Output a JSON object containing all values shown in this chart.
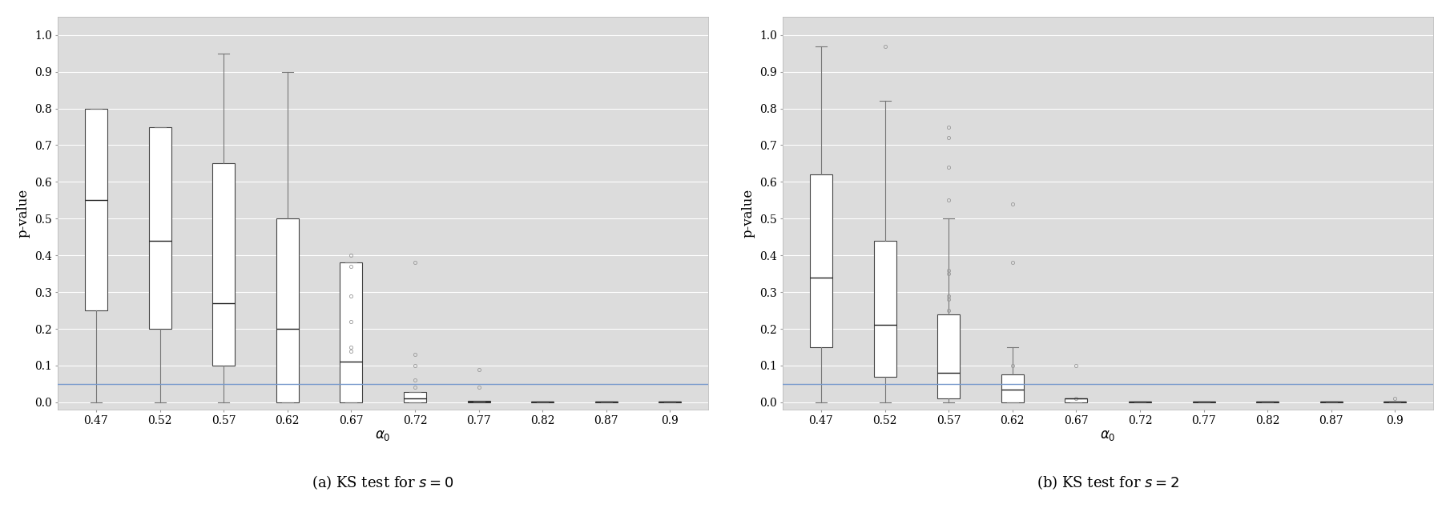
{
  "categories": [
    0.47,
    0.52,
    0.57,
    0.62,
    0.67,
    0.72,
    0.77,
    0.82,
    0.87,
    0.9
  ],
  "cat_labels": [
    "0.47",
    "0.52",
    "0.57",
    "0.62",
    "0.67",
    "0.72",
    "0.77",
    "0.82",
    "0.87",
    "0.9"
  ],
  "hline_y": 0.05,
  "hline_color": "#7799cc",
  "background_color": "#dcdcdc",
  "box_facecolor": "white",
  "box_edgecolor": "#444444",
  "whisker_color": "#777777",
  "flier_color": "#999999",
  "median_color": "#222222",
  "ylabel": "p-value",
  "xlabel": "$\\alpha_0$",
  "ylim": [
    -0.02,
    1.05
  ],
  "yticks": [
    0.0,
    0.1,
    0.2,
    0.3,
    0.4,
    0.5,
    0.6,
    0.7,
    0.8,
    0.9,
    1.0
  ],
  "title_a": "(a) KS test for $s = 0$",
  "title_b": "(b) KS test for $s = 2$",
  "panel_a": {
    "boxes": [
      {
        "q1": 0.25,
        "median": 0.55,
        "q3": 0.8,
        "whislo": 0.0,
        "whishi": 0.8,
        "fliers": []
      },
      {
        "q1": 0.2,
        "median": 0.44,
        "q3": 0.75,
        "whislo": 0.0,
        "whishi": 0.75,
        "fliers": []
      },
      {
        "q1": 0.1,
        "median": 0.27,
        "q3": 0.65,
        "whislo": 0.0,
        "whishi": 0.95,
        "fliers": []
      },
      {
        "q1": 0.0,
        "median": 0.2,
        "q3": 0.5,
        "whislo": 0.0,
        "whishi": 0.9,
        "fliers": []
      },
      {
        "q1": 0.0,
        "median": 0.11,
        "q3": 0.38,
        "whislo": 0.0,
        "whishi": 0.38,
        "fliers": [
          0.4,
          0.37,
          0.29,
          0.22,
          0.15,
          0.14
        ]
      },
      {
        "q1": 0.0,
        "median": 0.01,
        "q3": 0.028,
        "whislo": 0.0,
        "whishi": 0.028,
        "fliers": [
          0.04,
          0.06,
          0.1,
          0.13,
          0.38
        ]
      },
      {
        "q1": 0.0,
        "median": 0.002,
        "q3": 0.005,
        "whislo": 0.0,
        "whishi": 0.005,
        "fliers": [
          0.04,
          0.09
        ]
      },
      {
        "q1": 0.0,
        "median": 0.001,
        "q3": 0.002,
        "whislo": 0.0,
        "whishi": 0.002,
        "fliers": []
      },
      {
        "q1": 0.0,
        "median": 0.001,
        "q3": 0.002,
        "whislo": 0.0,
        "whishi": 0.002,
        "fliers": []
      },
      {
        "q1": 0.0,
        "median": 0.001,
        "q3": 0.002,
        "whislo": 0.0,
        "whishi": 0.002,
        "fliers": []
      }
    ]
  },
  "panel_b": {
    "boxes": [
      {
        "q1": 0.15,
        "median": 0.34,
        "q3": 0.62,
        "whislo": 0.0,
        "whishi": 0.97,
        "fliers": []
      },
      {
        "q1": 0.07,
        "median": 0.21,
        "q3": 0.44,
        "whislo": 0.0,
        "whishi": 0.82,
        "fliers": [
          0.97
        ]
      },
      {
        "q1": 0.01,
        "median": 0.08,
        "q3": 0.24,
        "whislo": 0.0,
        "whishi": 0.5,
        "fliers": [
          0.72,
          0.75,
          0.64,
          0.55,
          0.35,
          0.36,
          0.29,
          0.28,
          0.25
        ]
      },
      {
        "q1": 0.0,
        "median": 0.035,
        "q3": 0.075,
        "whislo": 0.0,
        "whishi": 0.15,
        "fliers": [
          0.1,
          0.38,
          0.54
        ]
      },
      {
        "q1": 0.0,
        "median": 0.01,
        "q3": 0.01,
        "whislo": 0.0,
        "whishi": 0.01,
        "fliers": [
          0.01,
          0.1
        ]
      },
      {
        "q1": 0.0,
        "median": 0.001,
        "q3": 0.002,
        "whislo": 0.0,
        "whishi": 0.002,
        "fliers": []
      },
      {
        "q1": 0.0,
        "median": 0.001,
        "q3": 0.002,
        "whislo": 0.0,
        "whishi": 0.002,
        "fliers": []
      },
      {
        "q1": 0.0,
        "median": 0.001,
        "q3": 0.002,
        "whislo": 0.0,
        "whishi": 0.002,
        "fliers": []
      },
      {
        "q1": 0.0,
        "median": 0.001,
        "q3": 0.002,
        "whislo": 0.0,
        "whishi": 0.002,
        "fliers": []
      },
      {
        "q1": 0.0,
        "median": 0.001,
        "q3": 0.002,
        "whislo": 0.0,
        "whishi": 0.002,
        "fliers": [
          0.01
        ]
      }
    ]
  }
}
